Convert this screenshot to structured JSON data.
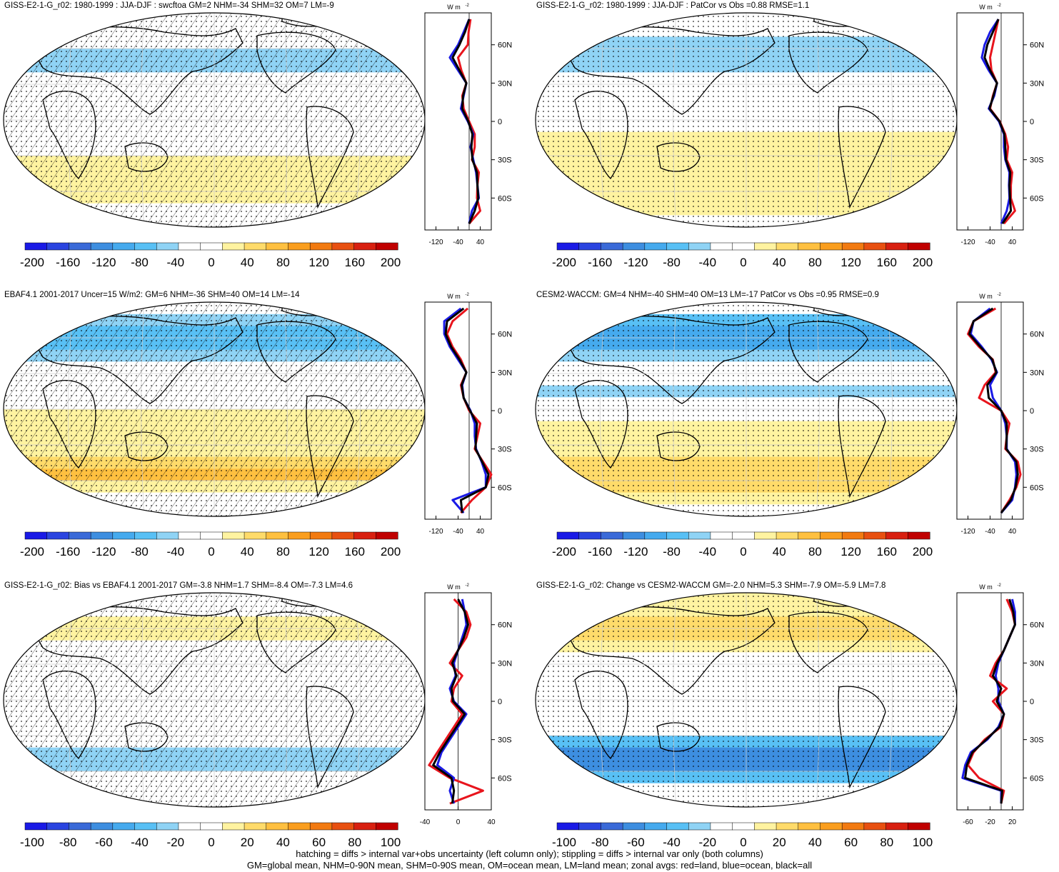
{
  "footnotes": [
    "hatching = diffs > internal var+obs uncertainty (left column only); stippling = diffs > internal var only (both columns)",
    "GM=global mean, NHM=0-90N mean, SHM=0-90S mean, OM=ocean mean, LM=land mean; zonal avgs: red=land, blue=ocean, black=all"
  ],
  "colorbar_colors": [
    "#1a1ae6",
    "#2a44e0",
    "#3a6ad8",
    "#3d8ee0",
    "#45aaee",
    "#58c0f5",
    "#8fd3f5",
    "#ffffff",
    "#ffffff",
    "#fff3a0",
    "#ffdb6a",
    "#ffc040",
    "#fa9e1e",
    "#f27a10",
    "#e85010",
    "#d82010",
    "#c00000"
  ],
  "zonal_unit": "W m",
  "zonal_unit_sup": "-2",
  "lat_labels": [
    "60N",
    "30N",
    "0",
    "30S",
    "60S"
  ],
  "lat_values": [
    60,
    30,
    0,
    -30,
    -60
  ],
  "chart_data": [
    {
      "type": "heatmap",
      "title": "GISS-E2-1-G_r02: 1980-1999 : JJA-DJF : swcftoa GM=2 NHM=-34 SHM=32 OM=7 LM=-9",
      "colorbar_ticks": [
        "-200",
        "-160",
        "-120",
        "-80",
        "-40",
        "0",
        "40",
        "80",
        "120",
        "160",
        "200"
      ],
      "colorbar_range": [
        -200,
        200
      ],
      "hatching": true,
      "zonal": {
        "xticks": [
          "-120",
          "-40",
          "40"
        ],
        "xlim": [
          -160,
          80
        ],
        "zero": 0,
        "lat": [
          80,
          70,
          60,
          50,
          40,
          30,
          20,
          10,
          0,
          -10,
          -20,
          -30,
          -40,
          -50,
          -60,
          -70,
          -80
        ],
        "land": [
          5,
          -2,
          -5,
          -40,
          -28,
          -10,
          -25,
          -20,
          0,
          20,
          20,
          10,
          35,
          30,
          28,
          40,
          0
        ],
        "ocean": [
          0,
          -20,
          -40,
          -70,
          -40,
          -10,
          -20,
          -30,
          -5,
          15,
          5,
          15,
          25,
          30,
          35,
          10,
          0
        ],
        "all": [
          0,
          -15,
          -35,
          -60,
          -35,
          -10,
          -22,
          -25,
          -3,
          12,
          8,
          12,
          28,
          30,
          33,
          20,
          0
        ]
      }
    },
    {
      "type": "heatmap",
      "title": "GISS-E2-1-G_r02: 1980-1999 : JJA-DJF : PatCor vs Obs =0.88 RMSE=1.1",
      "colorbar_ticks": [
        "-200",
        "-160",
        "-120",
        "-80",
        "-40",
        "0",
        "40",
        "80",
        "120",
        "160",
        "200"
      ],
      "colorbar_range": [
        -200,
        200
      ],
      "hatching": false,
      "zonal": {
        "xticks": [
          "-120",
          "-40",
          "40"
        ],
        "xlim": [
          -160,
          80
        ],
        "zero": 0,
        "lat": [
          80,
          70,
          60,
          50,
          40,
          30,
          20,
          10,
          0,
          -10,
          -20,
          -30,
          -40,
          -50,
          -60,
          -70,
          -80
        ],
        "land": [
          -10,
          -20,
          -30,
          -40,
          -35,
          -15,
          -30,
          -40,
          -5,
          15,
          25,
          20,
          40,
          35,
          35,
          50,
          10
        ],
        "ocean": [
          -10,
          -40,
          -60,
          -70,
          -45,
          -15,
          -25,
          -45,
          -8,
          10,
          10,
          15,
          30,
          28,
          30,
          20,
          0
        ],
        "all": [
          -10,
          -30,
          -50,
          -60,
          -40,
          -15,
          -28,
          -42,
          -6,
          12,
          15,
          17,
          33,
          30,
          32,
          35,
          5
        ]
      }
    },
    {
      "type": "heatmap",
      "title": "EBAF4.1 2001-2017 Uncer=15 W/m2: GM=6 NHM=-36 SHM=40 OM=14 LM=-14",
      "colorbar_ticks": [
        "-200",
        "-160",
        "-120",
        "-80",
        "-40",
        "0",
        "40",
        "80",
        "120",
        "160",
        "200"
      ],
      "colorbar_range": [
        -200,
        200
      ],
      "hatching": true,
      "zonal": {
        "xticks": [
          "-120",
          "-40",
          "40"
        ],
        "xlim": [
          -160,
          80
        ],
        "zero": 0,
        "lat": [
          80,
          70,
          60,
          50,
          40,
          30,
          20,
          10,
          0,
          -10,
          -20,
          -30,
          -40,
          -50,
          -60,
          -70,
          -80
        ],
        "land": [
          -5,
          -60,
          -80,
          -60,
          -30,
          -10,
          -30,
          -20,
          0,
          40,
          30,
          20,
          50,
          80,
          60,
          10,
          -30
        ],
        "ocean": [
          -30,
          -90,
          -90,
          -70,
          -40,
          -10,
          -25,
          -20,
          5,
          20,
          20,
          25,
          45,
          60,
          60,
          -60,
          -20
        ],
        "all": [
          -20,
          -80,
          -85,
          -65,
          -35,
          -10,
          -27,
          -20,
          3,
          28,
          25,
          23,
          47,
          70,
          60,
          -30,
          -25
        ]
      }
    },
    {
      "type": "heatmap",
      "title": "CESM2-WACCM: GM=4 NHM=-40 SHM=40 OM=13 LM=-17 PatCor vs Obs =0.95 RMSE=0.9",
      "colorbar_ticks": [
        "-200",
        "-160",
        "-120",
        "-80",
        "-40",
        "0",
        "40",
        "80",
        "120",
        "160",
        "200"
      ],
      "colorbar_range": [
        -200,
        200
      ],
      "hatching": false,
      "zonal": {
        "xticks": [
          "-120",
          "-40",
          "40"
        ],
        "xlim": [
          -160,
          80
        ],
        "zero": 0,
        "lat": [
          80,
          70,
          60,
          50,
          40,
          30,
          20,
          10,
          0,
          -10,
          -20,
          -30,
          -40,
          -50,
          -60,
          -70,
          -80
        ],
        "land": [
          -20,
          -100,
          -120,
          -80,
          -30,
          -20,
          -60,
          -80,
          0,
          30,
          20,
          15,
          60,
          70,
          55,
          30,
          0
        ],
        "ocean": [
          -40,
          -100,
          -110,
          -70,
          -35,
          -15,
          -40,
          -30,
          0,
          15,
          20,
          20,
          50,
          55,
          50,
          40,
          0
        ],
        "all": [
          -30,
          -100,
          -115,
          -75,
          -32,
          -17,
          -50,
          -45,
          0,
          20,
          20,
          18,
          55,
          60,
          52,
          35,
          0
        ]
      }
    },
    {
      "type": "heatmap",
      "title": "GISS-E2-1-G_r02: Bias vs EBAF4.1 2001-2017 GM=-3.8 NHM=1.7 SHM=-8.4 OM=-7.3 LM=4.6",
      "colorbar_ticks": [
        "-100",
        "-80",
        "-60",
        "-40",
        "-20",
        "0",
        "20",
        "40",
        "60",
        "80",
        "100"
      ],
      "colorbar_range": [
        -100,
        100
      ],
      "hatching": true,
      "zonal": {
        "xticks": [
          "-40",
          "0",
          "40"
        ],
        "xlim": [
          -40,
          40
        ],
        "zero": 0,
        "lat": [
          80,
          70,
          60,
          50,
          40,
          30,
          20,
          10,
          0,
          -10,
          -20,
          -30,
          -40,
          -50,
          -60,
          -70,
          -80
        ],
        "land": [
          -5,
          10,
          15,
          10,
          0,
          -10,
          5,
          -5,
          -8,
          5,
          -5,
          -15,
          -25,
          -35,
          -10,
          30,
          -10
        ],
        "ocean": [
          5,
          8,
          10,
          5,
          0,
          -5,
          -3,
          -10,
          -5,
          10,
          0,
          -10,
          -20,
          -25,
          -5,
          -10,
          -5
        ],
        "all": [
          0,
          8,
          12,
          7,
          0,
          -7,
          -2,
          -8,
          -6,
          8,
          -2,
          -12,
          -22,
          -30,
          -8,
          -5,
          -7
        ]
      }
    },
    {
      "type": "heatmap",
      "title": "GISS-E2-1-G_r02: Change vs CESM2-WACCM GM=-2.0 NHM=5.3 SHM=-7.9 OM=-5.9 LM=7.8",
      "colorbar_ticks": [
        "-100",
        "-80",
        "-60",
        "-40",
        "-20",
        "0",
        "20",
        "40",
        "60",
        "80",
        "100"
      ],
      "colorbar_range": [
        -100,
        100
      ],
      "hatching": false,
      "zonal": {
        "xticks": [
          "-60",
          "-20",
          "20"
        ],
        "xlim": [
          -80,
          40
        ],
        "zero": 0,
        "lat": [
          80,
          70,
          60,
          50,
          40,
          30,
          20,
          10,
          0,
          -10,
          -20,
          -30,
          -40,
          -50,
          -60,
          -70,
          -80
        ],
        "land": [
          10,
          20,
          25,
          15,
          5,
          -10,
          -20,
          10,
          -15,
          5,
          0,
          -30,
          -50,
          -60,
          -40,
          5,
          0
        ],
        "ocean": [
          20,
          25,
          25,
          15,
          5,
          -5,
          -10,
          -5,
          -5,
          5,
          -5,
          -25,
          -55,
          -65,
          -70,
          0,
          0
        ],
        "all": [
          15,
          22,
          25,
          15,
          5,
          -7,
          -15,
          0,
          -8,
          5,
          -3,
          -27,
          -52,
          -62,
          -65,
          2,
          0
        ]
      }
    }
  ]
}
